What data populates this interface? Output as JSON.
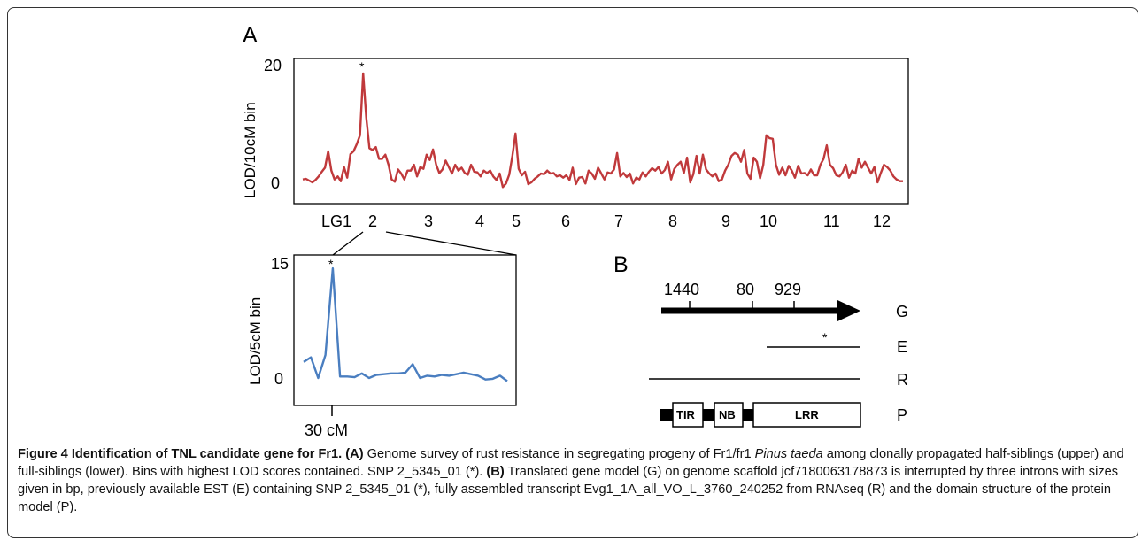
{
  "panel_a": {
    "letter": "A",
    "upper": {
      "ylabel": "LOD/10cM bin",
      "yticks": [
        "20",
        "0"
      ],
      "peak_mark": "*",
      "lg_labels": [
        "LG1",
        "2",
        "3",
        "4",
        "5",
        "6",
        "7",
        "8",
        "9",
        "10",
        "11",
        "12"
      ]
    },
    "lower": {
      "ylabel": "LOD/5cM bin",
      "yticks": [
        "15",
        "0"
      ],
      "peak_mark": "*",
      "xtick": "30 cM"
    }
  },
  "panel_b": {
    "letter": "B",
    "intron_sizes": [
      "1440",
      "80",
      "929"
    ],
    "rows": {
      "G": "G",
      "E": "E",
      "R": "R",
      "P": "P"
    },
    "est_mark": "*",
    "domains": {
      "tir": "TIR",
      "nb": "NB",
      "lrr": "LRR"
    }
  },
  "caption": {
    "title": "Figure 4 Identification of TNL candidate gene for Fr1.",
    "a_label": "(A)",
    "a_text_1": " Genome survey of rust resistance in segregating progeny of Fr1/fr1 ",
    "a_species": "Pinus taeda",
    "a_text_2": " among clonally propagated half-siblings (upper) and full-siblings (lower). Bins with highest LOD scores contained. SNP 2_5345_01 (*). ",
    "b_label": "(B)",
    "b_text": " Translated gene model (G) on genome scaffold jcf7180063178873 is interrupted by three introns with sizes given in bp, previously available EST (E) containing SNP 2_5345_01 (*), fully assembled transcript Evg1_1A_all_VO_L_3760_240252 from RNAseq (R) and the domain structure of the protein model (P)."
  },
  "colors": {
    "upper_line": "#c0393b",
    "lower_line": "#4a7ec0"
  },
  "chart_data": [
    {
      "type": "line",
      "ylabel": "LOD/10cM bin",
      "categories": [
        "LG1",
        "2",
        "3",
        "4",
        "5",
        "6",
        "7",
        "8",
        "9",
        "10",
        "11",
        "12"
      ],
      "ylim": [
        0,
        20
      ],
      "y": [
        0.5,
        0.6,
        0.3,
        0.0,
        0.4,
        1.0,
        1.8,
        2.5,
        5.3,
        2.0,
        0.5,
        1.0,
        0.2,
        2.6,
        0.8,
        4.8,
        5.3,
        6.5,
        8.0,
        18.5,
        11.0,
        5.8,
        5.5,
        6.0,
        4.0,
        4.0,
        4.7,
        3.0,
        0.5,
        0.1,
        2.2,
        1.5,
        0.5,
        2.0,
        2.0,
        3.0,
        1.0,
        2.6,
        2.3,
        4.7,
        3.8,
        5.6,
        3.0,
        1.6,
        2.2,
        3.7,
        2.6,
        1.5,
        3.0,
        2.0,
        2.5,
        1.6,
        1.3,
        3.0,
        1.8,
        1.7,
        1.0,
        2.0,
        1.6,
        2.0,
        1.0,
        0.4,
        1.5,
        -0.8,
        -0.2,
        1.3,
        4.5,
        8.3,
        2.3,
        1.2,
        1.8,
        -0.3,
        0.0,
        0.6,
        1.0,
        1.5,
        1.4,
        2.0,
        1.5,
        1.6,
        1.0,
        1.2,
        0.8,
        1.2,
        0.4,
        2.5,
        -0.3,
        0.8,
        0.9,
        -0.2,
        2.0,
        1.5,
        0.6,
        2.5,
        1.5,
        0.5,
        1.7,
        1.5,
        2.2,
        5.0,
        1.0,
        1.6,
        0.9,
        1.5,
        -0.2,
        0.8,
        0.5,
        1.7,
        1.0,
        1.8,
        2.4,
        2.0,
        2.6,
        1.5,
        2.1,
        3.5,
        0.5,
        2.3,
        3.0,
        3.5,
        1.6,
        4.2,
        0.0,
        1.4,
        4.5,
        1.5,
        4.7,
        2.2,
        1.5,
        1.0,
        1.5,
        0.2,
        0.5,
        2.0,
        3.0,
        4.5,
        5.0,
        4.7,
        3.5,
        5.5,
        1.5,
        0.6,
        4.2,
        3.5,
        0.7,
        3.0,
        8.0,
        7.5,
        7.4,
        3.0,
        1.3,
        2.5,
        1.2,
        2.8,
        2.0,
        0.8,
        2.8,
        1.5,
        1.6,
        1.2,
        2.2,
        1.2,
        1.2,
        3.0,
        4.0,
        6.3,
        3.0,
        2.4,
        1.2,
        1.0,
        1.7,
        3.0,
        0.8,
        2.0,
        1.5,
        4.0,
        2.5,
        3.5,
        2.5,
        1.5,
        2.6,
        0.0,
        1.6,
        3.0,
        2.6,
        2.0,
        1.0,
        0.5,
        0.2,
        0.2
      ]
    },
    {
      "type": "line",
      "ylabel": "LOD/5cM bin",
      "ylim": [
        0,
        15
      ],
      "xtick": "30 cM",
      "y": [
        2.1,
        2.7,
        0.0,
        3.0,
        14.3,
        0.2,
        0.2,
        0.1,
        0.6,
        0.0,
        0.4,
        0.5,
        0.6,
        0.6,
        0.7,
        1.8,
        0.0,
        0.3,
        0.2,
        0.4,
        0.3,
        0.5,
        0.7,
        0.5,
        0.3,
        -0.2,
        -0.1,
        0.3,
        -0.4
      ]
    }
  ]
}
